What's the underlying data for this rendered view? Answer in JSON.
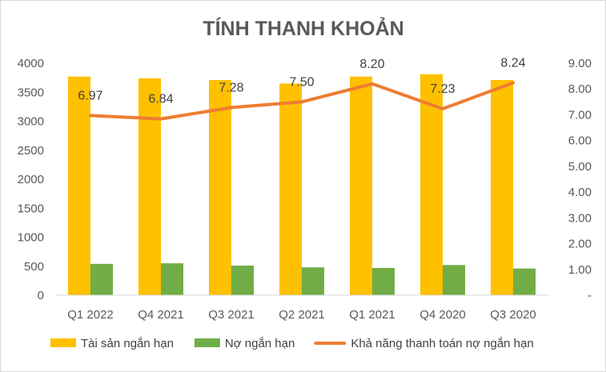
{
  "chart_data": {
    "type": "bar",
    "title": "TÍNH THANH KHOẢN",
    "categories": [
      "Q1 2022",
      "Q4 2021",
      "Q3 2021",
      "Q2 2021",
      "Q1 2021",
      "Q4 2020",
      "Q3 2020"
    ],
    "series": [
      {
        "name": "Tài sản ngắn hạn",
        "type": "bar",
        "axis": "left",
        "color": "#FFC000",
        "values": [
          3770,
          3740,
          3710,
          3650,
          3770,
          3810,
          3710
        ]
      },
      {
        "name": "Nợ ngắn hạn",
        "type": "bar",
        "axis": "left",
        "color": "#70AD47",
        "values": [
          540,
          550,
          510,
          480,
          470,
          520,
          460
        ]
      },
      {
        "name": "Khả năng thanh toán nợ ngắn hạn",
        "type": "line",
        "axis": "right",
        "color": "#ED7D31",
        "values": [
          6.97,
          6.84,
          7.28,
          7.5,
          8.2,
          7.23,
          8.24
        ],
        "labels": [
          "6.97",
          "6.84",
          "7.28",
          "7.50",
          "8.20",
          "7.23",
          "8.24"
        ]
      }
    ],
    "y_left": {
      "min": 0,
      "max": 4000,
      "ticks": [
        0,
        500,
        1000,
        1500,
        2000,
        2500,
        3000,
        3500,
        4000
      ],
      "tick_labels": [
        "0",
        "500",
        "1000",
        "1500",
        "2000",
        "2500",
        "3000",
        "3500",
        "4000"
      ]
    },
    "y_right": {
      "min": 0,
      "max": 9,
      "ticks": [
        0,
        1,
        2,
        3,
        4,
        5,
        6,
        7,
        8,
        9
      ],
      "tick_labels": [
        "-",
        "1.00",
        "2.00",
        "3.00",
        "4.00",
        "5.00",
        "6.00",
        "7.00",
        "8.00",
        "9.00"
      ]
    },
    "grid": false,
    "legend_position": "bottom"
  }
}
